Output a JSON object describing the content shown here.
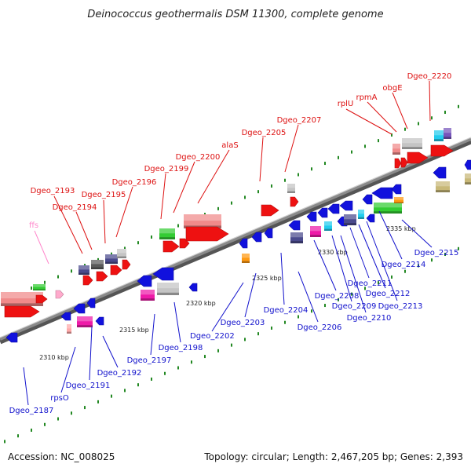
{
  "title": "Deinococcus geothermalis DSM 11300, complete genome",
  "footer": {
    "accession": "Accession: NC_008025",
    "summary": "Topology: circular; Length: 2,467,205 bp; Genes: 2,393"
  },
  "colors": {
    "forward_label": "#dd1111",
    "reverse_label": "#1111cc",
    "rna_label": "#ff88cc",
    "backbone": "#8a8a8a",
    "tick": "#228822"
  },
  "ticks": [
    "2310 kbp",
    "2315 kbp",
    "2320 kbp",
    "2325 kbp",
    "2330 kbp",
    "2335 kbp"
  ],
  "forward_labels": [
    "Dgeo_2193",
    "Dgeo_2194",
    "Dgeo_2195",
    "Dgeo_2196",
    "Dgeo_2199",
    "Dgeo_2200",
    "alaS",
    "Dgeo_2205",
    "Dgeo_2207",
    "rplU",
    "rpmA",
    "obgE",
    "Dgeo_2220"
  ],
  "rna_labels": [
    "ffs"
  ],
  "reverse_labels": [
    "Dgeo_2187",
    "rpsO",
    "Dgeo_2191",
    "Dgeo_2192",
    "Dgeo_2197",
    "Dgeo_2198",
    "Dgeo_2202",
    "Dgeo_2203",
    "Dgeo_2204",
    "Dgeo_2206",
    "Dgeo_2208",
    "Dgeo_2209",
    "Dgeo_2210",
    "Dgeo_2211",
    "Dgeo_2212",
    "Dgeo_2213",
    "Dgeo_2214",
    "Dgeo_2215"
  ]
}
